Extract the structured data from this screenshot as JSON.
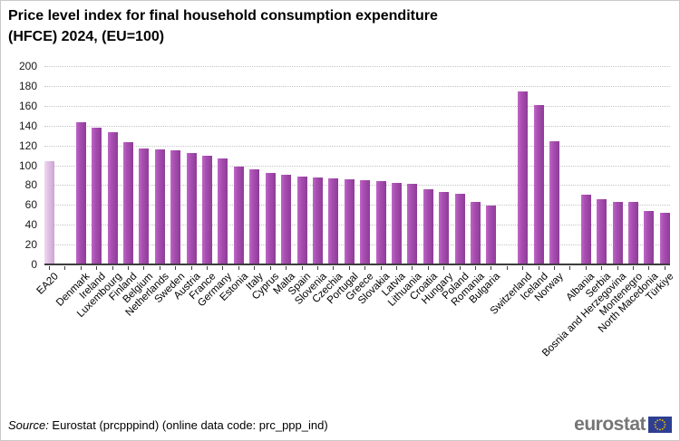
{
  "title": {
    "line1": "Price level index for final household consumption expenditure",
    "line2": "(HFCE) 2024, (EU=100)"
  },
  "chart_data": {
    "type": "bar",
    "title": "Price level index for final household consumption expenditure (HFCE) 2024, (EU=100)",
    "xlabel": "",
    "ylabel": "",
    "ylim": [
      0,
      200
    ],
    "ytick_step": 20,
    "grid": "dotted horizontal",
    "legend": "none",
    "groups": [
      {
        "name": "euro-area-aggregate",
        "bars": [
          {
            "label": "EA20",
            "value": 104,
            "highlight": true
          }
        ]
      },
      {
        "name": "eu-members",
        "bars": [
          {
            "label": "Denmark",
            "value": 143
          },
          {
            "label": "Ireland",
            "value": 138
          },
          {
            "label": "Luxembourg",
            "value": 133
          },
          {
            "label": "Finland",
            "value": 123
          },
          {
            "label": "Belgium",
            "value": 117
          },
          {
            "label": "Netherlands",
            "value": 116
          },
          {
            "label": "Sweden",
            "value": 115
          },
          {
            "label": "Austria",
            "value": 112
          },
          {
            "label": "France",
            "value": 110
          },
          {
            "label": "Germany",
            "value": 107
          },
          {
            "label": "Estonia",
            "value": 99
          },
          {
            "label": "Italy",
            "value": 96
          },
          {
            "label": "Cyprus",
            "value": 92
          },
          {
            "label": "Malta",
            "value": 90
          },
          {
            "label": "Spain",
            "value": 89
          },
          {
            "label": "Slovenia",
            "value": 88
          },
          {
            "label": "Czechia",
            "value": 87
          },
          {
            "label": "Portugal",
            "value": 86
          },
          {
            "label": "Greece",
            "value": 85
          },
          {
            "label": "Slovakia",
            "value": 84
          },
          {
            "label": "Latvia",
            "value": 82
          },
          {
            "label": "Lithuania",
            "value": 81
          },
          {
            "label": "Croatia",
            "value": 76
          },
          {
            "label": "Hungary",
            "value": 73
          },
          {
            "label": "Poland",
            "value": 71
          },
          {
            "label": "Romania",
            "value": 63
          },
          {
            "label": "Bulgaria",
            "value": 59
          }
        ]
      },
      {
        "name": "efta",
        "bars": [
          {
            "label": "Switzerland",
            "value": 174
          },
          {
            "label": "Iceland",
            "value": 161
          },
          {
            "label": "Norway",
            "value": 124
          }
        ]
      },
      {
        "name": "candidates",
        "bars": [
          {
            "label": "Albania",
            "value": 70
          },
          {
            "label": "Serbia",
            "value": 66
          },
          {
            "label": "Bosnia and Herzegovina",
            "value": 63
          },
          {
            "label": "Montenegro",
            "value": 63
          },
          {
            "label": "North Macedonia",
            "value": 54
          },
          {
            "label": "Türkiye",
            "value": 52
          }
        ]
      }
    ]
  },
  "colors": {
    "bar_main": "#a94fb2",
    "bar_highlight": "#e2c4e6",
    "gridline": "#c4c4c4",
    "axis": "#3d3d3d",
    "logo_gray": "#757575",
    "flag_blue": "#2e3f92",
    "flag_star": "#f3c300"
  },
  "footer": {
    "source_word": "Source:",
    "source_rest": " Eurostat (prcpppind) (online data code: prc_ppp_ind)",
    "logo_text": "eurostat"
  }
}
